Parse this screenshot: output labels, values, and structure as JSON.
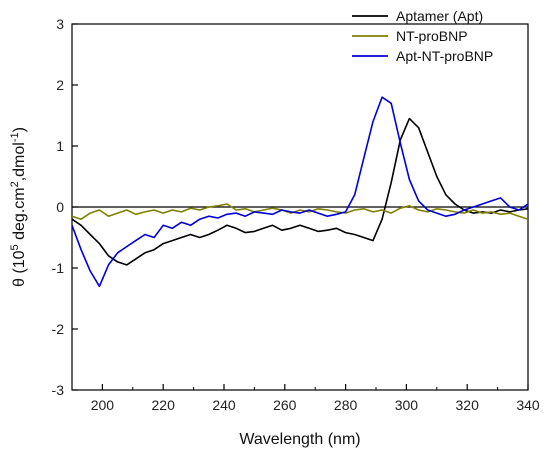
{
  "chart_data": {
    "type": "line",
    "xlabel": "Wavelength (nm)",
    "ylabel_parts": [
      "θ (10",
      "5",
      " deg.cm",
      "2",
      ",dmol",
      "-1",
      ")"
    ],
    "xlim": [
      190,
      340
    ],
    "ylim": [
      -3,
      3
    ],
    "x_ticks": [
      200,
      220,
      240,
      260,
      280,
      300,
      320,
      340
    ],
    "y_ticks": [
      -3,
      -2,
      -1,
      0,
      1,
      2,
      3
    ],
    "zero_line": true,
    "grid": false,
    "legend_position": "top-right",
    "series": [
      {
        "name": "Aptamer (Apt)",
        "color": "#000000",
        "x": [
          190,
          193,
          196,
          199,
          202,
          205,
          208,
          211,
          214,
          217,
          220,
          223,
          226,
          229,
          232,
          235,
          238,
          241,
          244,
          247,
          250,
          253,
          256,
          259,
          262,
          265,
          268,
          271,
          274,
          277,
          280,
          283,
          286,
          289,
          292,
          295,
          298,
          301,
          304,
          307,
          310,
          313,
          316,
          319,
          322,
          325,
          328,
          331,
          334,
          337,
          340
        ],
        "y": [
          -0.2,
          -0.3,
          -0.45,
          -0.6,
          -0.8,
          -0.9,
          -0.95,
          -0.85,
          -0.75,
          -0.7,
          -0.6,
          -0.55,
          -0.5,
          -0.45,
          -0.5,
          -0.45,
          -0.38,
          -0.3,
          -0.35,
          -0.42,
          -0.4,
          -0.35,
          -0.3,
          -0.38,
          -0.35,
          -0.3,
          -0.35,
          -0.4,
          -0.38,
          -0.35,
          -0.42,
          -0.45,
          -0.5,
          -0.55,
          -0.2,
          0.4,
          1.1,
          1.45,
          1.3,
          0.9,
          0.5,
          0.2,
          0.05,
          -0.05,
          -0.1,
          -0.08,
          -0.1,
          -0.05,
          -0.08,
          -0.05,
          -0.03
        ]
      },
      {
        "name": "NT-proBNP",
        "color": "#808000",
        "x": [
          190,
          193,
          196,
          199,
          202,
          205,
          208,
          211,
          214,
          217,
          220,
          223,
          226,
          229,
          232,
          235,
          238,
          241,
          244,
          247,
          250,
          253,
          256,
          259,
          262,
          265,
          268,
          271,
          274,
          277,
          280,
          283,
          286,
          289,
          292,
          295,
          298,
          301,
          304,
          307,
          310,
          313,
          316,
          319,
          322,
          325,
          328,
          331,
          334,
          337,
          340
        ],
        "y": [
          -0.15,
          -0.2,
          -0.1,
          -0.05,
          -0.15,
          -0.1,
          -0.05,
          -0.12,
          -0.08,
          -0.05,
          -0.1,
          -0.05,
          -0.08,
          -0.02,
          -0.05,
          0.0,
          0.02,
          0.05,
          -0.05,
          -0.03,
          -0.08,
          -0.05,
          -0.02,
          -0.05,
          -0.1,
          -0.05,
          -0.08,
          -0.03,
          -0.05,
          -0.08,
          -0.1,
          -0.05,
          -0.03,
          -0.08,
          -0.05,
          -0.1,
          -0.02,
          0.02,
          -0.05,
          -0.08,
          -0.03,
          -0.05,
          -0.08,
          -0.1,
          -0.05,
          -0.1,
          -0.08,
          -0.12,
          -0.1,
          -0.15,
          -0.2
        ]
      },
      {
        "name": "Apt-NT-proBNP",
        "color": "#0000dd",
        "x": [
          190,
          193,
          196,
          199,
          202,
          205,
          208,
          211,
          214,
          217,
          220,
          223,
          226,
          229,
          232,
          235,
          238,
          241,
          244,
          247,
          250,
          253,
          256,
          259,
          262,
          265,
          268,
          271,
          274,
          277,
          280,
          283,
          286,
          289,
          292,
          295,
          298,
          301,
          304,
          307,
          310,
          313,
          316,
          319,
          322,
          325,
          328,
          331,
          334,
          337,
          340
        ],
        "y": [
          -0.3,
          -0.7,
          -1.05,
          -1.3,
          -0.95,
          -0.75,
          -0.65,
          -0.55,
          -0.45,
          -0.5,
          -0.3,
          -0.35,
          -0.25,
          -0.3,
          -0.2,
          -0.15,
          -0.18,
          -0.12,
          -0.1,
          -0.15,
          -0.08,
          -0.1,
          -0.12,
          -0.05,
          -0.08,
          -0.1,
          -0.05,
          -0.1,
          -0.15,
          -0.12,
          -0.08,
          0.2,
          0.8,
          1.4,
          1.8,
          1.7,
          1.05,
          0.45,
          0.1,
          -0.05,
          -0.1,
          -0.15,
          -0.12,
          -0.05,
          0.0,
          0.05,
          0.1,
          0.15,
          0.0,
          -0.05,
          0.05
        ]
      }
    ]
  }
}
